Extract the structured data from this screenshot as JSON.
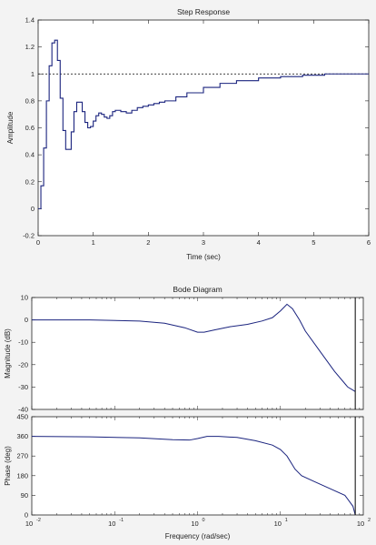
{
  "colors": {
    "background": "#f3f3f3",
    "axes_bg": "#ffffff",
    "series": "#1a237e",
    "reference": "#000000"
  },
  "chart_data": [
    {
      "type": "line",
      "title": "Step Response",
      "xlabel": "Time (sec)",
      "ylabel": "Amplitude",
      "xlim": [
        0,
        6
      ],
      "ylim": [
        -0.2,
        1.4
      ],
      "xticks": [
        "0",
        "1",
        "2",
        "3",
        "4",
        "5",
        "6"
      ],
      "yticks": [
        "-0.2",
        "0",
        "0.2",
        "0.4",
        "0.6",
        "0.8",
        "1",
        "1.2",
        "1.4"
      ],
      "grid": false,
      "reference_line": {
        "y": 1,
        "style": "dashed"
      },
      "series": [
        {
          "style": "stairs",
          "x": [
            0,
            0.05,
            0.1,
            0.15,
            0.2,
            0.25,
            0.3,
            0.35,
            0.4,
            0.45,
            0.5,
            0.55,
            0.6,
            0.65,
            0.7,
            0.75,
            0.8,
            0.85,
            0.9,
            0.95,
            1.0,
            1.05,
            1.1,
            1.15,
            1.2,
            1.25,
            1.3,
            1.35,
            1.4,
            1.5,
            1.6,
            1.7,
            1.8,
            1.9,
            2.0,
            2.1,
            2.2,
            2.3,
            2.5,
            2.7,
            3.0,
            3.3,
            3.6,
            4.0,
            4.4,
            4.8,
            5.2,
            5.6,
            6.0
          ],
          "y": [
            0,
            0.17,
            0.45,
            0.8,
            1.06,
            1.23,
            1.25,
            1.1,
            0.82,
            0.58,
            0.44,
            0.44,
            0.57,
            0.72,
            0.79,
            0.79,
            0.72,
            0.64,
            0.6,
            0.61,
            0.65,
            0.69,
            0.71,
            0.7,
            0.68,
            0.67,
            0.69,
            0.72,
            0.73,
            0.72,
            0.71,
            0.73,
            0.75,
            0.76,
            0.77,
            0.78,
            0.79,
            0.8,
            0.83,
            0.86,
            0.9,
            0.93,
            0.95,
            0.97,
            0.98,
            0.99,
            1.0,
            1.0,
            1.0
          ]
        }
      ]
    },
    {
      "type": "line",
      "title": "Bode Diagram",
      "xlabel": "Frequency  (rad/sec)",
      "xscale": "log",
      "xlim": [
        0.01,
        100
      ],
      "xticks": [
        "10",
        "10",
        "10",
        "10",
        "10"
      ],
      "xtick_exponents": [
        "-2",
        "-1",
        "0",
        "1",
        "2"
      ],
      "grid": false,
      "vertical_marker": {
        "x": 80
      },
      "panels": [
        {
          "ylabel": "Magnitude (dB)",
          "ylim": [
            -40,
            10
          ],
          "yticks": [
            "-40",
            "-30",
            "-20",
            "-10",
            "0",
            "10"
          ],
          "series": [
            {
              "x": [
                0.01,
                0.05,
                0.2,
                0.4,
                0.7,
                1.0,
                1.2,
                1.6,
                2.5,
                4,
                6,
                8,
                10,
                12,
                14,
                17,
                20,
                30,
                45,
                65,
                80
              ],
              "y": [
                0,
                0,
                -0.5,
                -1.5,
                -3.5,
                -5.5,
                -5.5,
                -4.5,
                -3,
                -2,
                -0.5,
                1,
                4,
                7,
                5,
                0,
                -5,
                -14,
                -23,
                -30,
                -32
              ]
            }
          ]
        },
        {
          "ylabel": "Phase (deg)",
          "ylim": [
            0,
            450
          ],
          "yticks": [
            "0",
            "90",
            "180",
            "270",
            "360",
            "450"
          ],
          "series": [
            {
              "x": [
                0.01,
                0.05,
                0.2,
                0.5,
                0.8,
                1.0,
                1.3,
                1.8,
                3,
                5,
                8,
                10,
                12,
                15,
                18,
                25,
                40,
                60,
                75,
                80
              ],
              "y": [
                360,
                358,
                353,
                345,
                343,
                350,
                360,
                360,
                355,
                340,
                320,
                300,
                270,
                210,
                180,
                155,
                120,
                90,
                40,
                0
              ]
            }
          ]
        }
      ]
    }
  ]
}
